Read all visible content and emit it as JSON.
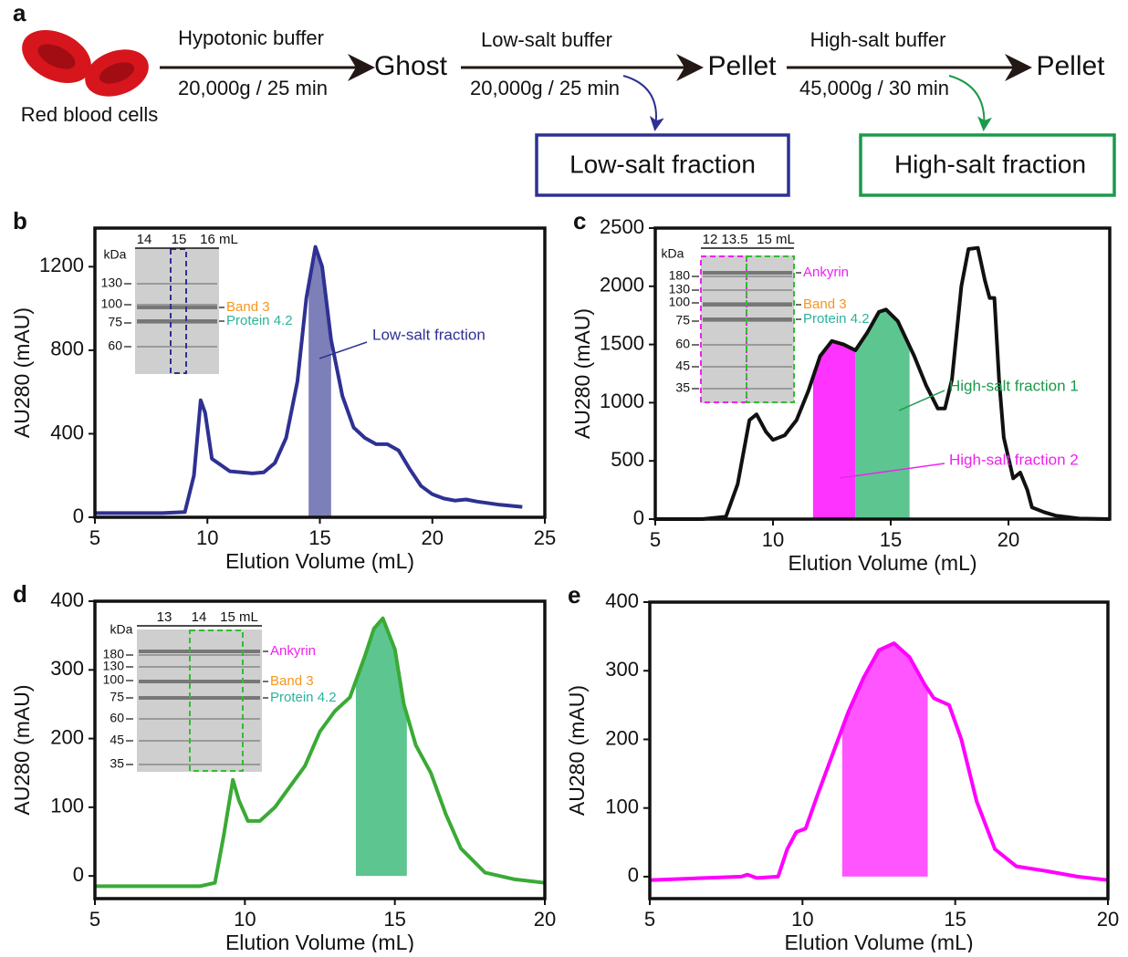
{
  "scheme": {
    "panel": "a",
    "cells": "Red blood cells",
    "step1_top": "Hypotonic buffer",
    "step1_bottom": "20,000g / 25 min",
    "product1": "Ghost",
    "step2_top": "Low-salt buffer",
    "step2_bottom": "20,000g / 25 min",
    "product2": "Pellet",
    "step3_top": "High-salt buffer",
    "step3_bottom": "45,000g / 30 min",
    "product3": "Pellet",
    "fraction1": "Low-salt fraction",
    "fraction2": "High-salt fraction"
  },
  "chart_data": [
    {
      "type": "line",
      "panel": "b",
      "xlabel": "Elution Volume (mL)",
      "ylabel": "AU280 (mAU)",
      "color": "#2e3192",
      "x": [
        5,
        8,
        9,
        9.4,
        9.7,
        9.9,
        10.2,
        11,
        12,
        12.5,
        13,
        13.5,
        14,
        14.4,
        14.8,
        15.1,
        15.5,
        16,
        16.5,
        17,
        17.5,
        18,
        18.5,
        19,
        19.5,
        20,
        20.5,
        21,
        21.5,
        22,
        23,
        24
      ],
      "values": [
        20,
        20,
        25,
        200,
        560,
        500,
        280,
        220,
        210,
        215,
        260,
        380,
        650,
        1050,
        1295,
        1200,
        850,
        580,
        430,
        380,
        350,
        350,
        320,
        230,
        150,
        110,
        90,
        80,
        85,
        75,
        60,
        50
      ],
      "xlim": [
        5,
        25
      ],
      "ylim": [
        0,
        1385
      ],
      "xticks": [
        5,
        10,
        15,
        20,
        25
      ],
      "yticks": [
        0,
        400,
        800,
        1200
      ],
      "fractions": [
        {
          "range": [
            14.5,
            15.5
          ],
          "color": "#7d80b8"
        }
      ],
      "annotations": [
        {
          "text": "Low-salt fraction",
          "color": "#2e3192"
        }
      ],
      "gel": {
        "unit": "kDa",
        "lanes": [
          "14",
          "15",
          "16 mL"
        ],
        "markers": [
          130,
          100,
          75,
          60
        ],
        "labels": [
          {
            "text": "Band 3",
            "color": "#f7941d"
          },
          {
            "text": "Protein 4.2",
            "color": "#2bb39a"
          }
        ]
      }
    },
    {
      "type": "line",
      "panel": "c",
      "xlabel": "Elution Volume (mL)",
      "ylabel": "AU280 (mAU)",
      "color": "#111111",
      "x": [
        5,
        7,
        8,
        8.5,
        9,
        9.3,
        9.7,
        10,
        10.5,
        11,
        11.5,
        12,
        12.5,
        13,
        13.5,
        14,
        14.5,
        14.8,
        15.3,
        16,
        16.5,
        17,
        17.3,
        17.6,
        18,
        18.3,
        18.7,
        19,
        19.2,
        19.4,
        19.6,
        19.8,
        20.2,
        20.5,
        20.8,
        21,
        21.5,
        22,
        23,
        24.3
      ],
      "values": [
        0,
        0,
        20,
        300,
        850,
        900,
        750,
        680,
        720,
        850,
        1100,
        1400,
        1530,
        1500,
        1450,
        1600,
        1780,
        1800,
        1700,
        1400,
        1150,
        950,
        950,
        1200,
        2000,
        2320,
        2330,
        2050,
        1900,
        1900,
        1200,
        700,
        350,
        400,
        250,
        100,
        60,
        30,
        5,
        0
      ],
      "xlim": [
        5,
        24.3
      ],
      "ylim": [
        0,
        2500
      ],
      "xticks": [
        5,
        10,
        15,
        20
      ],
      "yticks": [
        0,
        500,
        1000,
        1500,
        2000,
        2500
      ],
      "fractions": [
        {
          "range": [
            11.7,
            13.5
          ],
          "color": "#ff33ff"
        },
        {
          "range": [
            13.5,
            15.8
          ],
          "color": "#5dc58f"
        }
      ],
      "annotations": [
        {
          "text": "High-salt fraction 1",
          "color": "#1a9a4a"
        },
        {
          "text": "High-salt fraction 2",
          "color": "#ee22ee"
        }
      ],
      "gel": {
        "unit": "kDa",
        "lanes": [
          "12",
          "13.5",
          "15 mL"
        ],
        "markers": [
          180,
          130,
          100,
          75,
          60,
          45,
          35
        ],
        "labels": [
          {
            "text": "Ankyrin",
            "color": "#ee22ee"
          },
          {
            "text": "Band 3",
            "color": "#f7941d"
          },
          {
            "text": "Protein 4.2",
            "color": "#2bb39a"
          }
        ]
      }
    },
    {
      "type": "line",
      "panel": "d",
      "xlabel": "Elution Volume (mL)",
      "ylabel": "AU280 (mAU)",
      "color": "#3aaa35",
      "x": [
        5,
        8.5,
        9,
        9.3,
        9.6,
        9.8,
        10.1,
        10.5,
        11,
        11.5,
        12,
        12.5,
        13,
        13.5,
        14,
        14.3,
        14.6,
        15,
        15.3,
        15.7,
        16.2,
        16.7,
        17.2,
        18,
        19,
        20
      ],
      "values": [
        -15,
        -15,
        -10,
        60,
        140,
        110,
        80,
        80,
        100,
        130,
        160,
        210,
        240,
        260,
        320,
        360,
        375,
        330,
        250,
        190,
        150,
        90,
        40,
        5,
        -5,
        -10
      ],
      "xlim": [
        5,
        20
      ],
      "ylim": [
        -33,
        400
      ],
      "xticks": [
        5,
        10,
        15,
        20
      ],
      "yticks": [
        0,
        100,
        200,
        300,
        400
      ],
      "fractions": [
        {
          "range": [
            13.7,
            15.4
          ],
          "color": "#5dc58f"
        }
      ],
      "annotations": [],
      "gel": {
        "unit": "kDa",
        "lanes": [
          "13",
          "14",
          "15 mL"
        ],
        "markers": [
          180,
          130,
          100,
          75,
          60,
          45,
          35
        ],
        "labels": [
          {
            "text": "Ankyrin",
            "color": "#ee22ee"
          },
          {
            "text": "Band 3",
            "color": "#f7941d"
          },
          {
            "text": "Protein 4.2",
            "color": "#2bb39a"
          }
        ]
      }
    },
    {
      "type": "line",
      "panel": "e",
      "xlabel": "Elution Volume (mL)",
      "ylabel": "AU280 (mAU)",
      "color": "#ff00ff",
      "x": [
        5,
        8,
        8.2,
        8.5,
        9.2,
        9.5,
        9.8,
        10.1,
        10.5,
        11,
        11.5,
        12,
        12.5,
        13,
        13.5,
        14,
        14.3,
        14.8,
        15.2,
        15.7,
        16.3,
        17,
        18,
        19,
        20
      ],
      "values": [
        -5,
        0,
        3,
        -2,
        0,
        40,
        65,
        70,
        120,
        180,
        240,
        290,
        330,
        340,
        320,
        280,
        260,
        250,
        200,
        110,
        40,
        15,
        8,
        0,
        -5
      ],
      "xlim": [
        5,
        20
      ],
      "ylim": [
        -32,
        400
      ],
      "xticks": [
        5,
        10,
        15,
        20
      ],
      "yticks": [
        0,
        100,
        200,
        300,
        400
      ],
      "fractions": [
        {
          "range": [
            11.3,
            14.1
          ],
          "color": "#ff55ff"
        }
      ],
      "annotations": []
    }
  ]
}
